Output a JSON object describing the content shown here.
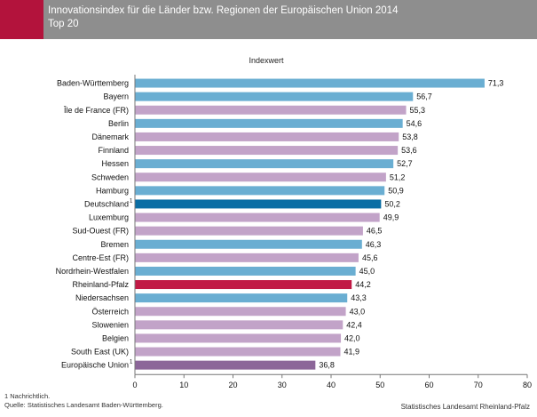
{
  "header": {
    "title": "Innovationsindex für die Länder bzw. Regionen der Europäischen Union 2014",
    "subtitle": "Top 20"
  },
  "colors": {
    "header_bg": "#8e8e8e",
    "accent": "#b3133c",
    "germany_state": "#6aaed2",
    "region": "#c2a3c8",
    "deutschland": "#0a6ea4",
    "rheinland_pfalz": "#c11945",
    "eu": "#8c6699"
  },
  "chart_data": {
    "type": "bar",
    "orientation": "horizontal",
    "title": "Indexwert",
    "xlim": [
      0,
      80
    ],
    "xticks": [
      0,
      10,
      20,
      30,
      40,
      50,
      60,
      70,
      80
    ],
    "xtick_labels": [
      "0",
      "10",
      "20",
      "30",
      "40",
      "50",
      "60",
      "70",
      "80"
    ],
    "grid": false,
    "categories": [
      {
        "label": "Baden-Württemberg",
        "footnote": "",
        "value": 71.3,
        "value_label": "71,3",
        "group": "germany_state"
      },
      {
        "label": "Bayern",
        "footnote": "",
        "value": 56.7,
        "value_label": "56,7",
        "group": "germany_state"
      },
      {
        "label": "Île de France (FR)",
        "footnote": "",
        "value": 55.3,
        "value_label": "55,3",
        "group": "region"
      },
      {
        "label": "Berlin",
        "footnote": "",
        "value": 54.6,
        "value_label": "54,6",
        "group": "germany_state"
      },
      {
        "label": "Dänemark",
        "footnote": "",
        "value": 53.8,
        "value_label": "53,8",
        "group": "region"
      },
      {
        "label": "Finnland",
        "footnote": "",
        "value": 53.6,
        "value_label": "53,6",
        "group": "region"
      },
      {
        "label": "Hessen",
        "footnote": "",
        "value": 52.7,
        "value_label": "52,7",
        "group": "germany_state"
      },
      {
        "label": "Schweden",
        "footnote": "",
        "value": 51.2,
        "value_label": "51,2",
        "group": "region"
      },
      {
        "label": "Hamburg",
        "footnote": "",
        "value": 50.9,
        "value_label": "50,9",
        "group": "germany_state"
      },
      {
        "label": "Deutschland",
        "footnote": "1",
        "value": 50.2,
        "value_label": "50,2",
        "group": "deutschland"
      },
      {
        "label": "Luxemburg",
        "footnote": "",
        "value": 49.9,
        "value_label": "49,9",
        "group": "region"
      },
      {
        "label": "Sud-Ouest (FR)",
        "footnote": "",
        "value": 46.5,
        "value_label": "46,5",
        "group": "region"
      },
      {
        "label": "Bremen",
        "footnote": "",
        "value": 46.3,
        "value_label": "46,3",
        "group": "germany_state"
      },
      {
        "label": "Centre-Est (FR)",
        "footnote": "",
        "value": 45.6,
        "value_label": "45,6",
        "group": "region"
      },
      {
        "label": "Nordrhein-Westfalen",
        "footnote": "",
        "value": 45.0,
        "value_label": "45,0",
        "group": "germany_state"
      },
      {
        "label": "Rheinland-Pfalz",
        "footnote": "",
        "value": 44.2,
        "value_label": "44,2",
        "group": "rheinland_pfalz"
      },
      {
        "label": "Niedersachsen",
        "footnote": "",
        "value": 43.3,
        "value_label": "43,3",
        "group": "germany_state"
      },
      {
        "label": "Österreich",
        "footnote": "",
        "value": 43.0,
        "value_label": "43,0",
        "group": "region"
      },
      {
        "label": "Slowenien",
        "footnote": "",
        "value": 42.4,
        "value_label": "42,4",
        "group": "region"
      },
      {
        "label": "Belgien",
        "footnote": "",
        "value": 42.0,
        "value_label": "42,0",
        "group": "region"
      },
      {
        "label": "South East (UK)",
        "footnote": "",
        "value": 41.9,
        "value_label": "41,9",
        "group": "region"
      },
      {
        "label": "Europäische Union",
        "footnote": "1",
        "value": 36.8,
        "value_label": "36,8",
        "group": "eu"
      }
    ]
  },
  "footer": {
    "footnote": "1 Nachrichtlich.",
    "source_left": "Quelle: Statistisches Landesamt Baden-Württemberg.",
    "source_right": "Statistisches Landesamt Rheinland-Pfalz"
  }
}
